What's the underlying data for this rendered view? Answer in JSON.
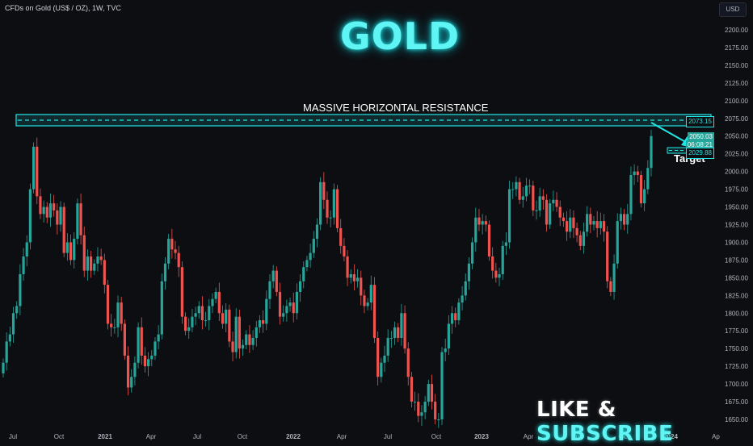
{
  "header": {
    "symbol": "CFDs on Gold (US$ / OZ), 1W, TVC",
    "currency_button": "USD"
  },
  "overlay": {
    "title": "GOLD",
    "resistance_label": "MASSIVE HORIZONTAL RESISTANCE",
    "target_label": "Target",
    "cta_white_1": "LIKE",
    "cta_white_2": " & ",
    "cta_cyan": "SUBSCRIBE"
  },
  "price_tags": {
    "resistance": "2073.15",
    "last": "2050.03",
    "countdown": "06:08:21",
    "target": "2029.88"
  },
  "colors": {
    "up": "#26a69a",
    "down": "#ef5350",
    "accent": "#22e6e6",
    "background": "#0d0e12"
  },
  "chart_data": {
    "type": "candlestick",
    "title": "",
    "x_tick_labels": [
      "Jul",
      "Oct",
      "2021",
      "Apr",
      "Jul",
      "Oct",
      "2022",
      "Apr",
      "Jul",
      "Oct",
      "2023",
      "Apr",
      "Jul",
      "Oct",
      "2024",
      "Ap"
    ],
    "y_tick_labels": [
      "2200.00",
      "2175.00",
      "2150.00",
      "2125.00",
      "2100.00",
      "2075.00",
      "2050.00",
      "2025.00",
      "2000.00",
      "1975.00",
      "1950.00",
      "1925.00",
      "1900.00",
      "1875.00",
      "1850.00",
      "1825.00",
      "1800.00",
      "1775.00",
      "1750.00",
      "1725.00",
      "1700.00",
      "1675.00",
      "1650.00"
    ],
    "ylim": [
      1640,
      2225
    ],
    "resistance_level": 2073.15,
    "target_level": 2029.88,
    "last_price": 2050.03,
    "closes": [
      1730,
      1760,
      1770,
      1800,
      1810,
      1855,
      1880,
      1900,
      1975,
      2035,
      1965,
      1940,
      1950,
      1935,
      1955,
      1945,
      1925,
      1950,
      1885,
      1900,
      1875,
      1905,
      1955,
      1910,
      1860,
      1880,
      1860,
      1870,
      1880,
      1875,
      1840,
      1785,
      1780,
      1780,
      1815,
      1785,
      1740,
      1695,
      1710,
      1730,
      1780,
      1740,
      1725,
      1735,
      1740,
      1760,
      1770,
      1845,
      1870,
      1905,
      1890,
      1885,
      1865,
      1795,
      1775,
      1780,
      1795,
      1800,
      1810,
      1790,
      1790,
      1810,
      1820,
      1830,
      1800,
      1785,
      1805,
      1760,
      1745,
      1795,
      1750,
      1755,
      1770,
      1755,
      1765,
      1780,
      1790,
      1785,
      1820,
      1845,
      1860,
      1830,
      1795,
      1800,
      1810,
      1815,
      1800,
      1830,
      1845,
      1865,
      1875,
      1885,
      1905,
      1925,
      1985,
      1960,
      1935,
      1935,
      1975,
      1920,
      1895,
      1880,
      1850,
      1855,
      1845,
      1850,
      1825,
      1810,
      1815,
      1840,
      1765,
      1710,
      1730,
      1740,
      1765,
      1765,
      1780,
      1765,
      1800,
      1750,
      1710,
      1675,
      1675,
      1655,
      1660,
      1675,
      1700,
      1675,
      1650,
      1650,
      1745,
      1750,
      1785,
      1800,
      1790,
      1815,
      1825,
      1845,
      1870,
      1900,
      1935,
      1925,
      1930,
      1925,
      1880,
      1860,
      1850,
      1855,
      1895,
      1900,
      1975,
      1975,
      1985,
      1960,
      1965,
      1980,
      1980,
      1945,
      1945,
      1965,
      1960,
      1925,
      1955,
      1960,
      1950,
      1935,
      1930,
      1915,
      1935,
      1920,
      1910,
      1895,
      1915,
      1940,
      1925,
      1930,
      1920,
      1930,
      1915,
      1845,
      1830,
      1870,
      1930,
      1940,
      1925,
      1940,
      1995,
      2000,
      1995,
      1955,
      1975,
      2005,
      2050
    ]
  }
}
